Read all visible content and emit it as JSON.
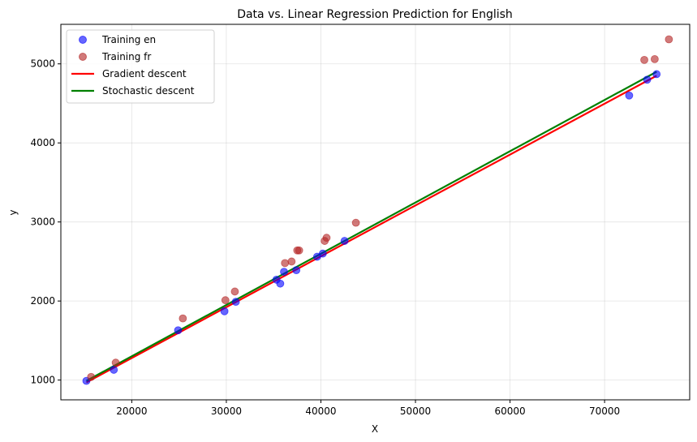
{
  "chart_data": {
    "type": "scatter",
    "title": "Data vs. Linear Regression Prediction for English",
    "xlabel": "X",
    "ylabel": "y",
    "xlim": [
      12500,
      79000
    ],
    "ylim": [
      750,
      5500
    ],
    "xticks": [
      20000,
      30000,
      40000,
      50000,
      60000,
      70000
    ],
    "yticks": [
      1000,
      2000,
      3000,
      4000,
      5000
    ],
    "grid": true,
    "legend_position": "top-left",
    "scatter_series": [
      {
        "name": "Training en",
        "color": "#0000ff",
        "alpha": 0.6,
        "points": [
          [
            15200,
            990
          ],
          [
            18100,
            1130
          ],
          [
            24900,
            1630
          ],
          [
            29800,
            1870
          ],
          [
            31000,
            1990
          ],
          [
            35300,
            2270
          ],
          [
            35700,
            2220
          ],
          [
            36100,
            2370
          ],
          [
            37400,
            2390
          ],
          [
            39600,
            2560
          ],
          [
            40200,
            2600
          ],
          [
            42500,
            2760
          ],
          [
            72600,
            4600
          ],
          [
            74500,
            4800
          ],
          [
            75500,
            4870
          ]
        ]
      },
      {
        "name": "Training fr",
        "color": "#b22222",
        "alpha": 0.6,
        "points": [
          [
            15700,
            1040
          ],
          [
            18300,
            1220
          ],
          [
            25400,
            1780
          ],
          [
            29900,
            2010
          ],
          [
            30900,
            2120
          ],
          [
            36200,
            2480
          ],
          [
            36900,
            2500
          ],
          [
            37500,
            2640
          ],
          [
            37700,
            2640
          ],
          [
            40400,
            2760
          ],
          [
            40600,
            2800
          ],
          [
            43700,
            2990
          ],
          [
            74200,
            5050
          ],
          [
            75300,
            5060
          ],
          [
            76800,
            5310
          ]
        ]
      }
    ],
    "line_series": [
      {
        "name": "Gradient descent",
        "color": "#ff0000",
        "points": [
          [
            15200,
            970
          ],
          [
            75500,
            4850
          ]
        ]
      },
      {
        "name": "Stochastic descent",
        "color": "#008000",
        "points": [
          [
            15200,
            990
          ],
          [
            75500,
            4900
          ]
        ]
      }
    ]
  }
}
